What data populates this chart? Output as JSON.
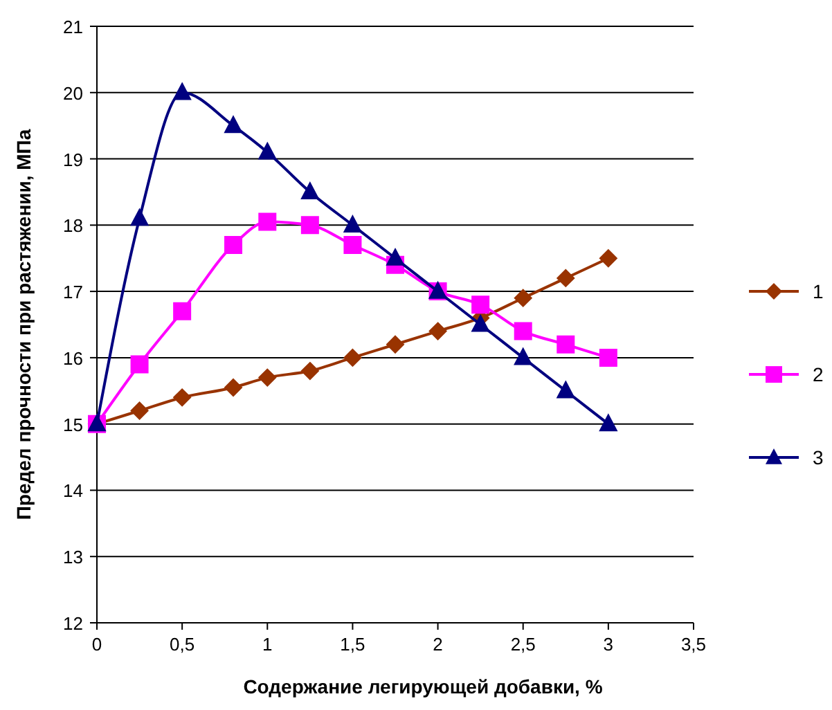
{
  "chart_data": {
    "type": "line",
    "xlabel": "Содержание легирующей добавки, %",
    "ylabel": "Предел прочности при растяжении, МПа",
    "x": [
      0,
      0.25,
      0.5,
      0.8,
      1,
      1.25,
      1.5,
      1.75,
      2,
      2.25,
      2.5,
      2.75,
      3
    ],
    "series": [
      {
        "name": "1",
        "color": "#993300",
        "marker": "diamond",
        "values": [
          15,
          15.2,
          15.4,
          15.55,
          15.7,
          15.8,
          16,
          16.2,
          16.4,
          16.6,
          16.9,
          17.2,
          17.5
        ]
      },
      {
        "name": "2",
        "color": "#ff00ff",
        "marker": "square",
        "values": [
          15,
          15.9,
          16.7,
          17.7,
          18.05,
          18,
          17.7,
          17.4,
          17,
          16.8,
          16.4,
          16.2,
          16
        ]
      },
      {
        "name": "3",
        "color": "#000080",
        "marker": "triangle",
        "values": [
          15,
          18.1,
          20,
          19.5,
          19.1,
          18.5,
          18,
          17.5,
          17,
          16.5,
          16,
          15.5,
          15
        ]
      }
    ],
    "xlim": [
      0,
      3.5
    ],
    "xticks": [
      0,
      {
        "value": 0.5,
        "label": "0,5"
      },
      1,
      {
        "value": 1.5,
        "label": "1,5"
      },
      2,
      {
        "value": 2.5,
        "label": "2,5"
      },
      3,
      {
        "value": 3.5,
        "label": "3,5"
      }
    ],
    "ylim": [
      12,
      21
    ],
    "yticks": [
      12,
      13,
      14,
      15,
      16,
      17,
      18,
      19,
      20,
      21
    ],
    "grid": "y",
    "legend": "right",
    "line_style": "solid"
  }
}
